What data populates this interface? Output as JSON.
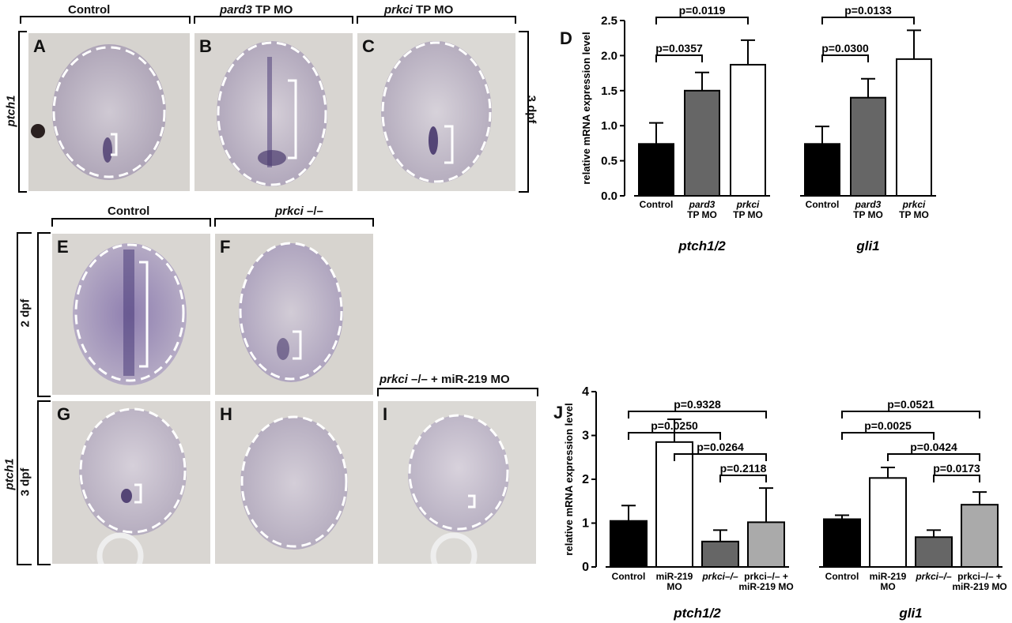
{
  "top": {
    "headers": [
      "Control",
      "pard3",
      " TP MO",
      "prkci",
      " TP MO"
    ],
    "side_label": "ptch1",
    "right_label": "3 dpf",
    "panel_letters": [
      "A",
      "B",
      "C"
    ]
  },
  "bottom": {
    "headers": [
      "Control",
      "prkci",
      " –/–",
      "prkci",
      " –/–",
      "  + miR-219 MO"
    ],
    "side_label": "ptch1",
    "row_labels": [
      "2 dpf",
      "3 dpf"
    ],
    "panel_letters": [
      "E",
      "F",
      "G",
      "H",
      "I"
    ]
  },
  "chart_data": [
    {
      "panel": "D",
      "type": "bar",
      "ylabel": "relative mRNA expression level",
      "ylim": [
        0,
        2.5
      ],
      "yticks": [
        "0.0",
        "0.5",
        "1.0",
        "1.5",
        "2.0",
        "2.5"
      ],
      "groups": [
        {
          "name": "ptch1/2",
          "categories": [
            [
              "Control"
            ],
            [
              "pard3",
              "TP MO"
            ],
            [
              "prkci",
              "TP MO"
            ]
          ],
          "values": [
            0.74,
            1.5,
            1.87
          ],
          "errors": [
            0.3,
            0.26,
            0.35
          ],
          "colors": [
            "#000000",
            "#666666",
            "#ffffff"
          ],
          "pvalues": [
            {
              "from": 0,
              "to": 1,
              "label": "p=0.0357",
              "level": 0
            },
            {
              "from": 0,
              "to": 2,
              "label": "p=0.0119",
              "level": 1
            }
          ]
        },
        {
          "name": "gli1",
          "categories": [
            [
              "Control"
            ],
            [
              "pard3",
              "TP MO"
            ],
            [
              "prkci",
              "TP MO"
            ]
          ],
          "values": [
            0.74,
            1.4,
            1.95
          ],
          "errors": [
            0.25,
            0.27,
            0.41
          ],
          "colors": [
            "#000000",
            "#666666",
            "#ffffff"
          ],
          "pvalues": [
            {
              "from": 0,
              "to": 1,
              "label": "p=0.0300",
              "level": 0
            },
            {
              "from": 0,
              "to": 2,
              "label": "p=0.0133",
              "level": 1
            }
          ]
        }
      ]
    },
    {
      "panel": "J",
      "type": "bar",
      "ylabel": "relative mRNA expression level",
      "ylim": [
        0,
        4
      ],
      "yticks": [
        "0",
        "1",
        "2",
        "3",
        "4"
      ],
      "groups": [
        {
          "name": "ptch1/2",
          "categories": [
            [
              "Control"
            ],
            [
              "miR-219",
              "MO"
            ],
            [
              "prkci–/–"
            ],
            [
              "prkci–/– +",
              "miR-219 MO"
            ]
          ],
          "values": [
            1.05,
            2.85,
            0.58,
            1.02
          ],
          "errors": [
            0.35,
            0.52,
            0.26,
            0.78
          ],
          "colors": [
            "#000000",
            "#ffffff",
            "#666666",
            "#aaaaaa"
          ],
          "pvalues": [
            {
              "from": 2,
              "to": 3,
              "label": "p=0.2118",
              "level": 0
            },
            {
              "from": 1,
              "to": 3,
              "label": "p=0.0264",
              "level": 1
            },
            {
              "from": 0,
              "to": 2,
              "label": "p=0.0250",
              "level": 2
            },
            {
              "from": 0,
              "to": 3,
              "label": "p=0.9328",
              "level": 3
            }
          ]
        },
        {
          "name": "gli1",
          "categories": [
            [
              "Control"
            ],
            [
              "miR-219",
              "MO"
            ],
            [
              "prkci–/–"
            ],
            [
              "prkci–/– +",
              "miR-219 MO"
            ]
          ],
          "values": [
            1.09,
            2.03,
            0.68,
            1.42
          ],
          "errors": [
            0.09,
            0.24,
            0.16,
            0.29
          ],
          "colors": [
            "#000000",
            "#ffffff",
            "#666666",
            "#aaaaaa"
          ],
          "pvalues": [
            {
              "from": 2,
              "to": 3,
              "label": "p=0.0173",
              "level": 0
            },
            {
              "from": 1,
              "to": 3,
              "label": "p=0.0424",
              "level": 1
            },
            {
              "from": 0,
              "to": 2,
              "label": "p=0.0025",
              "level": 2
            },
            {
              "from": 0,
              "to": 3,
              "label": "p=0.0521",
              "level": 3
            }
          ]
        }
      ]
    }
  ]
}
